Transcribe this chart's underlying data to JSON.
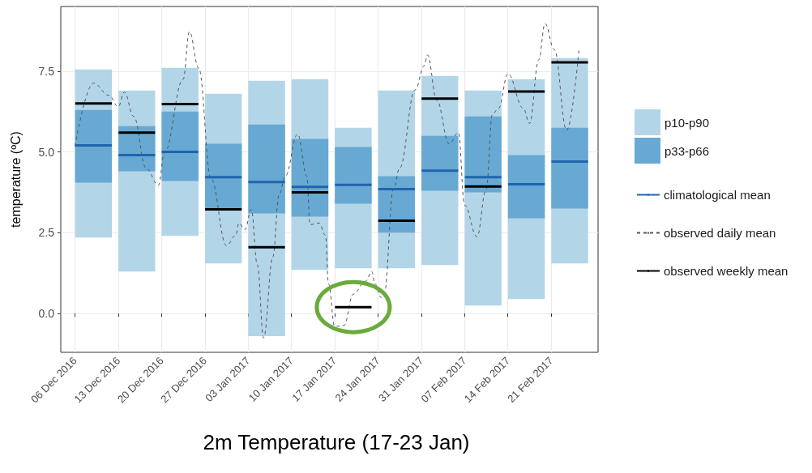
{
  "chart_data": {
    "type": "bar",
    "title": "2m Temperature (17-23 Jan)",
    "ylabel": "temperature (ºC)",
    "x": [
      "2016-12-09",
      "2016-12-16",
      "2016-12-23",
      "2016-12-30",
      "2017-01-06",
      "2017-01-13",
      "2017-01-20",
      "2017-01-27",
      "2017-02-03",
      "2017-02-10",
      "2017-02-17",
      "2017-02-24"
    ],
    "xlim": [
      "2016-12-03T17:00",
      "2017-02-28T14:00"
    ],
    "xticks": [
      {
        "value": "2016-12-06",
        "label": "06 Dec 2016"
      },
      {
        "value": "2016-12-13",
        "label": "13 Dec 2016"
      },
      {
        "value": "2016-12-20",
        "label": "20 Dec 2016"
      },
      {
        "value": "2016-12-27",
        "label": "27 Dec 2016"
      },
      {
        "value": "2017-01-03",
        "label": "03 Jan 2017"
      },
      {
        "value": "2017-01-10",
        "label": "10 Jan 2017"
      },
      {
        "value": "2017-01-17",
        "label": "17 Jan 2017"
      },
      {
        "value": "2017-01-24",
        "label": "24 Jan 2017"
      },
      {
        "value": "2017-01-31",
        "label": "31 Jan 2017"
      },
      {
        "value": "2017-02-07",
        "label": "07 Feb 2017"
      },
      {
        "value": "2017-02-14",
        "label": "14 Feb 2017"
      },
      {
        "value": "2017-02-21",
        "label": "21 Feb 2017"
      }
    ],
    "ylim": [
      -1.2,
      9.5
    ],
    "yticks": [
      {
        "value": 0,
        "label": "0.0"
      },
      {
        "value": 2.5,
        "label": "2.5"
      },
      {
        "value": 5,
        "label": "5.0"
      },
      {
        "value": 7.5,
        "label": "7.5"
      }
    ],
    "grid": true,
    "legend": "right",
    "series": [
      {
        "name": "p10-p90",
        "color": "#b3d5e8",
        "base": [
          2.35,
          1.3,
          2.4,
          1.55,
          -0.7,
          1.35,
          1.4,
          1.4,
          1.5,
          0.25,
          0.45,
          1.55
        ],
        "values": [
          5.2,
          5.6,
          5.2,
          5.25,
          7.9,
          5.9,
          4.35,
          5.5,
          5.85,
          6.65,
          6.8,
          6.35
        ]
      },
      {
        "name": "p33-p66",
        "color": "#67a9d3",
        "base": [
          4.05,
          4.4,
          4.1,
          3.2,
          3.1,
          3.0,
          3.4,
          2.5,
          3.8,
          3.75,
          2.95,
          3.25
        ],
        "values": [
          2.25,
          1.4,
          2.15,
          2.05,
          2.75,
          2.4,
          1.75,
          1.75,
          1.7,
          2.35,
          1.95,
          2.5
        ]
      },
      {
        "name": "climatological mean",
        "type": "line",
        "color": "#1f64ad",
        "line_style": "solid",
        "x": [
          "2016-12-06T01:00",
          "2016-12-11T23:00",
          "2016-12-12",
          "2016-12-13T01:00",
          "2016-12-18T23:00",
          "2016-12-19",
          "2016-12-20T01:00",
          "2016-12-25T23:00",
          "2016-12-26",
          "2016-12-27T01:00",
          "2017-01-01T23:00",
          "2017-01-02",
          "2017-01-03T01:00",
          "2017-01-08T23:00",
          "2017-01-09",
          "2017-01-10T01:00",
          "2017-01-15T23:00",
          "2017-01-16",
          "2017-01-17T01:00",
          "2017-01-22T23:00",
          "2017-01-23",
          "2017-01-24T01:00",
          "2017-01-29T23:00",
          "2017-01-30",
          "2017-01-31T01:00",
          "2017-02-05T23:00",
          "2017-02-06",
          "2017-02-07T01:00",
          "2017-02-12T23:00",
          "2017-02-13",
          "2017-02-14T01:00",
          "2017-02-19T23:00",
          "2017-02-20",
          "2017-02-21T01:00",
          "2017-02-26T23:00"
        ],
        "values": [
          5.2,
          5.2,
          null,
          4.9,
          4.9,
          null,
          5.0,
          5.0,
          null,
          4.22,
          4.22,
          null,
          4.07,
          4.07,
          null,
          3.92,
          3.92,
          null,
          3.98,
          3.98,
          null,
          3.85,
          3.85,
          null,
          4.42,
          4.42,
          null,
          4.22,
          4.22,
          null,
          4.0,
          4.0,
          null,
          4.7,
          4.7
        ]
      },
      {
        "name": "observed daily mean",
        "type": "line",
        "color": "#555555",
        "line_style": "dashed",
        "x": [
          "2016-12-06",
          "2016-12-09",
          "2016-12-11T12:00",
          "2016-12-13",
          "2016-12-14",
          "2016-12-15T12:00",
          "2016-12-17T12:00",
          "2016-12-19T12:00",
          "2016-12-20T12:00",
          "2016-12-23T12:00",
          "2016-12-24T12:00",
          "2016-12-26",
          "2016-12-28",
          "2016-12-30T12:00",
          "2017-01-01",
          "2017-01-01T12:00",
          "2017-01-02T12:00",
          "2017-01-03T12:00",
          "2017-01-04T12:00",
          "2017-01-05T12:00",
          "2017-01-07",
          "2017-01-08",
          "2017-01-09",
          "2017-01-11",
          "2017-01-12T12:00",
          "2017-01-13",
          "2017-01-14T12:00",
          "2017-01-15T12:00",
          "2017-01-16",
          "2017-01-17",
          "2017-01-18T12:00",
          "2017-01-20",
          "2017-01-22",
          "2017-01-23",
          "2017-01-23T12:00",
          "2017-01-24T12:00",
          "2017-01-25",
          "2017-01-26T12:00",
          "2017-01-27T12:00",
          "2017-01-30",
          "2017-01-31T12:00",
          "2017-02-01",
          "2017-02-02T12:00",
          "2017-02-04T12:00",
          "2017-02-06",
          "2017-02-07",
          "2017-02-09",
          "2017-02-10T12:00",
          "2017-02-11T12:00",
          "2017-02-12T12:00",
          "2017-02-14",
          "2017-02-16T12:00",
          "2017-02-17T12:00",
          "2017-02-19",
          "2017-02-20",
          "2017-02-21T12:00",
          "2017-02-23T12:00",
          "2017-02-25T12:00"
        ],
        "values": [
          5.18,
          7.13,
          6.75,
          6.4,
          6.85,
          6.1,
          4.5,
          3.97,
          5.0,
          7.25,
          8.72,
          7.6,
          4.17,
          2.1,
          2.42,
          2.8,
          2.6,
          3.22,
          1.5,
          -0.75,
          1.75,
          3.67,
          4.25,
          5.55,
          4.25,
          2.75,
          2.8,
          2.42,
          0.92,
          -0.4,
          -0.37,
          0.6,
          1.0,
          1.3,
          0.92,
          0.5,
          0.6,
          3.85,
          4.5,
          6.92,
          7.67,
          8.0,
          6.6,
          5.25,
          5.6,
          3.35,
          2.38,
          3.85,
          6.17,
          6.35,
          7.42,
          6.35,
          5.88,
          7.85,
          8.97,
          8.17,
          5.67,
          8.17
        ]
      },
      {
        "name": "observed weekly mean",
        "type": "line",
        "color": "#000000",
        "line_style": "solid",
        "x": [
          "2016-12-06T01:00",
          "2016-12-11T23:00",
          "2016-12-12",
          "2016-12-13T01:00",
          "2016-12-18T23:00",
          "2016-12-19",
          "2016-12-20T01:00",
          "2016-12-25T23:00",
          "2016-12-26",
          "2016-12-27T01:00",
          "2017-01-01T23:00",
          "2017-01-02",
          "2017-01-03T01:00",
          "2017-01-08T23:00",
          "2017-01-09",
          "2017-01-10T01:00",
          "2017-01-15T23:00",
          "2017-01-16",
          "2017-01-17T01:00",
          "2017-01-22T23:00",
          "2017-01-23",
          "2017-01-24T01:00",
          "2017-01-29T23:00",
          "2017-01-30",
          "2017-01-31T01:00",
          "2017-02-05T23:00",
          "2017-02-06",
          "2017-02-07T01:00",
          "2017-02-12T23:00",
          "2017-02-13",
          "2017-02-14T01:00",
          "2017-02-19T23:00",
          "2017-02-20",
          "2017-02-21T01:00",
          "2017-02-26T23:00"
        ],
        "values": [
          6.5,
          6.5,
          null,
          5.6,
          5.6,
          null,
          6.48,
          6.48,
          null,
          3.22,
          3.22,
          null,
          2.05,
          2.05,
          null,
          3.75,
          3.75,
          null,
          0.2,
          0.2,
          null,
          2.87,
          2.87,
          null,
          6.65,
          6.65,
          null,
          3.93,
          3.93,
          null,
          6.87,
          6.87,
          null,
          7.77,
          7.77
        ]
      }
    ]
  }
}
